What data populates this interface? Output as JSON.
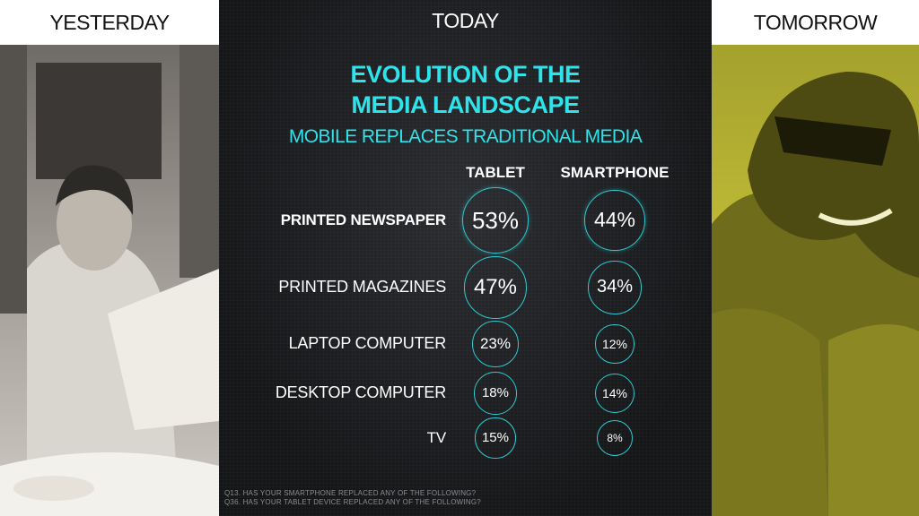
{
  "columns": {
    "left": "YESTERDAY",
    "center": "TODAY",
    "right": "TOMORROW"
  },
  "title_line1": "EVOLUTION OF THE",
  "title_line2": "MEDIA LANDSCAPE",
  "subtitle": "MOBILE REPLACES TRADITIONAL MEDIA",
  "footnote_line1": "Q13. HAS YOUR SMARTPHONE REPLACED ANY OF THE FOLLOWING?",
  "footnote_line2": "Q36. HAS YOUR TABLET DEVICE REPLACED ANY OF THE FOLLOWING?",
  "colors": {
    "accent": "#2fe3ea",
    "circle_stroke": "#2fcad2",
    "background": "#1c1d20"
  },
  "chart_data": {
    "type": "table",
    "series": [
      {
        "name": "TABLET",
        "values": [
          53,
          47,
          23,
          18,
          15
        ]
      },
      {
        "name": "SMARTPHONE",
        "values": [
          44,
          34,
          12,
          14,
          8
        ]
      }
    ],
    "categories": [
      "PRINTED NEWSPAPER",
      "PRINTED MAGAZINES",
      "LAPTOP COMPUTER",
      "DESKTOP COMPUTER",
      "TV"
    ],
    "labels": [
      [
        "53%",
        "44%"
      ],
      [
        "47%",
        "34%"
      ],
      [
        "23%",
        "12%"
      ],
      [
        "18%",
        "14%"
      ],
      [
        "15%",
        "8%"
      ]
    ],
    "highlight_first_row": true
  }
}
